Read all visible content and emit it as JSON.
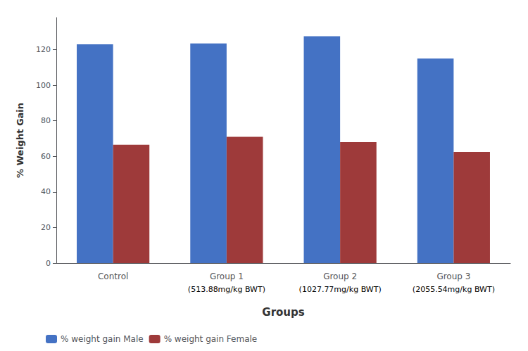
{
  "chart_data": {
    "type": "bar",
    "categories": [
      "Control",
      "Group 1",
      "Group 2",
      "Group 3"
    ],
    "annotations": [
      {
        "category": "Group 1",
        "text": "(513.88mg/kg BWT)"
      },
      {
        "category": "Group 2",
        "text": "(1027.77mg/kg BWT)"
      },
      {
        "category": "Group 3",
        "text": "(2055.54mg/kg BWT)"
      }
    ],
    "series": [
      {
        "name": "% weight gain Male",
        "color": "#4472C4",
        "values": [
          123,
          123.5,
          127.5,
          115
        ]
      },
      {
        "name": "% weight gain Female",
        "color": "#9E3A3A",
        "values": [
          66.5,
          71,
          68,
          62.5
        ]
      }
    ],
    "xlabel": "Groups",
    "ylabel": "% Weight Gain",
    "ylim": [
      0,
      138
    ],
    "yticks": [
      0,
      20,
      40,
      60,
      80,
      100,
      120
    ],
    "grid": false,
    "legend": "lower left"
  }
}
